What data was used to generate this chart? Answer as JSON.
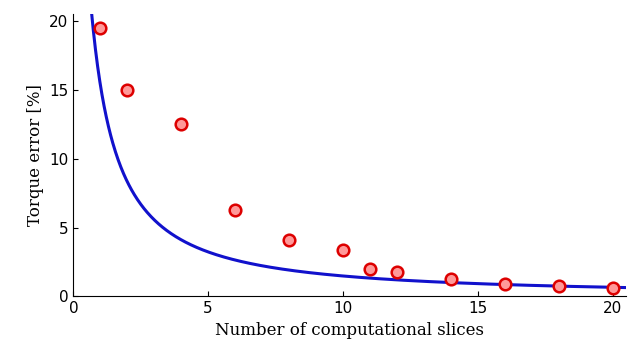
{
  "scatter_x": [
    1,
    2,
    4,
    6,
    8,
    10,
    11,
    12,
    14,
    16,
    18,
    20
  ],
  "scatter_y": [
    19.5,
    15.0,
    12.5,
    6.3,
    4.1,
    3.4,
    2.0,
    1.8,
    1.3,
    0.9,
    0.75,
    0.6
  ],
  "scatter_edge_color": "#DD0000",
  "scatter_face_color": "#FF9999",
  "curve_color": "#1111CC",
  "curve_linewidth": 2.2,
  "marker_size": 70,
  "xlabel": "Number of computational slices",
  "ylabel": "Torque error [%]",
  "xlim": [
    0,
    20.5
  ],
  "ylim": [
    0,
    20.5
  ],
  "xticks": [
    0,
    5,
    10,
    15,
    20
  ],
  "yticks": [
    0,
    5,
    10,
    15,
    20
  ],
  "background_color": "#FFFFFF",
  "font_size": 12
}
